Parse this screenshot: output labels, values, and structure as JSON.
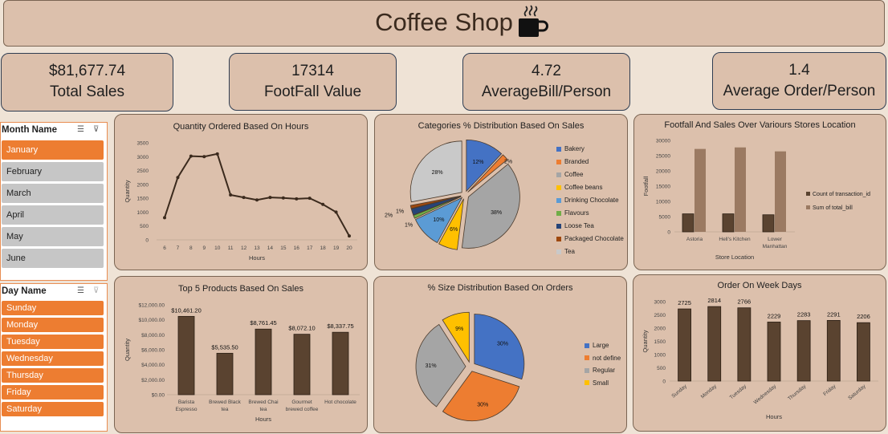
{
  "title": "Coffee Shop",
  "kpis": [
    {
      "value": "$81,677.74",
      "label": "Total Sales"
    },
    {
      "value": "17314",
      "label": "FootFall Value"
    },
    {
      "value": "4.72",
      "label": "AverageBill/Person"
    },
    {
      "value": "1.4",
      "label": "Average Order/Person"
    }
  ],
  "month_slicer": {
    "header": "Month Name",
    "items": [
      "January",
      "February",
      "March",
      "April",
      "May",
      "June"
    ],
    "selected": "January"
  },
  "day_slicer": {
    "header": "Day Name",
    "items": [
      "Sunday",
      "Monday",
      "Tuesday",
      "Wednesday",
      "Thursday",
      "Friday",
      "Saturday"
    ]
  },
  "colors": {
    "accent": "#ed7d31",
    "panel": "#dcc0ac",
    "background": "#efe3d6",
    "bar_dark": "#5a4330",
    "bar_light": "#9b7a62"
  },
  "chart_data": [
    {
      "type": "line",
      "title": "Quantity Ordered Based On Hours",
      "xlabel": "Hours",
      "ylabel": "Quantity",
      "x": [
        6,
        7,
        8,
        9,
        10,
        11,
        12,
        13,
        14,
        15,
        16,
        17,
        18,
        19,
        20
      ],
      "values": [
        800,
        2250,
        3020,
        3000,
        3100,
        1620,
        1530,
        1440,
        1530,
        1510,
        1480,
        1500,
        1280,
        1000,
        140
      ],
      "ylim": [
        0,
        3500
      ],
      "yticks": [
        "0",
        "500",
        "1000",
        "1500",
        "2000",
        "2500",
        "3000",
        "3500"
      ]
    },
    {
      "type": "pie",
      "title": "Categories % Distribution Based On Sales",
      "categories": [
        "Bakery",
        "Branded",
        "Coffee",
        "Coffee beans",
        "Drinking Chocolate",
        "Flavours",
        "Loose Tea",
        "Packaged Chocolate",
        "Tea"
      ],
      "values": [
        12,
        2,
        38,
        6,
        10,
        1,
        2,
        1,
        28
      ],
      "labels": [
        "12%",
        "2%",
        "38%",
        "6%",
        "10%",
        "1%",
        "2%",
        "1%",
        "28%"
      ],
      "colors": [
        "#4472c4",
        "#ed7d31",
        "#a5a5a5",
        "#ffc000",
        "#5b9bd5",
        "#70ad47",
        "#264478",
        "#9e480e",
        "#c9c9c9"
      ],
      "legend": "right"
    },
    {
      "type": "bar",
      "title": "Footfall And Sales Over Variours Stores Location",
      "categories": [
        "Astoria",
        "Hell's Kitchen",
        "Lower Manhattan"
      ],
      "xlabel": "Store Location",
      "ylabel": "Footfall",
      "series": [
        {
          "name": "Count of transaction_id",
          "values": [
            5900,
            5900,
            5600
          ]
        },
        {
          "name": "Sum of total_bill",
          "values": [
            27200,
            27700,
            26400
          ]
        }
      ],
      "ylim": [
        0,
        30000
      ],
      "yticks": [
        "0",
        "5000",
        "10000",
        "15000",
        "20000",
        "25000",
        "30000"
      ],
      "legend": "right"
    },
    {
      "type": "bar",
      "title": "Top 5 Products Based On Sales",
      "categories": [
        "Barista Espresso",
        "Brewed Black tea",
        "Brewed Chai tea",
        "Gourmet brewed coffee",
        "Hot chocolate"
      ],
      "values": [
        10461.2,
        5535.5,
        8761.45,
        8072.1,
        8337.75
      ],
      "labels": [
        "$10,461.20",
        "$5,535.50",
        "$8,761.45",
        "$8,072.10",
        "$8,337.75"
      ],
      "xlabel": "Hours",
      "ylabel": "Quantity",
      "ylim": [
        0,
        12000
      ],
      "yticks": [
        "$0.00",
        "$2,000.00",
        "$4,000.00",
        "$6,000.00",
        "$8,000.00",
        "$10,000.00",
        "$12,000.00"
      ]
    },
    {
      "type": "pie",
      "title": "% Size Distribution Based On Orders",
      "categories": [
        "Large",
        "not define",
        "Regular",
        "Small"
      ],
      "values": [
        30,
        30,
        31,
        9
      ],
      "labels": [
        "30%",
        "30%",
        "31%",
        "9%"
      ],
      "colors": [
        "#4472c4",
        "#ed7d31",
        "#a5a5a5",
        "#ffc000"
      ],
      "legend": "right"
    },
    {
      "type": "bar",
      "title": "Order On Week Days",
      "categories": [
        "Sunday",
        "Monday",
        "Tuesday",
        "Wednesday",
        "Thursday",
        "Friday",
        "Saturday"
      ],
      "values": [
        2725,
        2814,
        2766,
        2229,
        2283,
        2291,
        2206
      ],
      "labels": [
        "2725",
        "2814",
        "2766",
        "2229",
        "2283",
        "2291",
        "2206"
      ],
      "xlabel": "Hours",
      "ylabel": "Quantity",
      "ylim": [
        0,
        3000
      ],
      "yticks": [
        "0",
        "500",
        "1000",
        "1500",
        "2000",
        "2500",
        "3000"
      ]
    }
  ]
}
